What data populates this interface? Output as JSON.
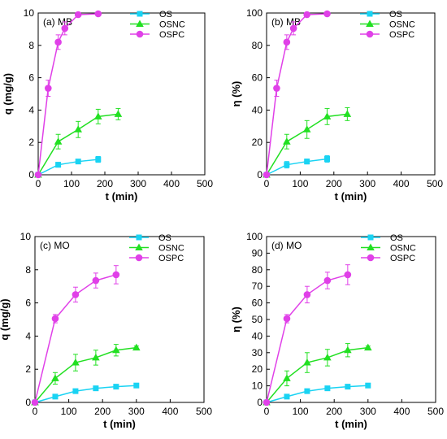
{
  "chart_data": [
    {
      "type": "line",
      "panel_label": "(a) MB",
      "xlabel": "t (min)",
      "ylabel": "q (mg/g)",
      "xlim": [
        0,
        500
      ],
      "ylim": [
        0,
        10
      ],
      "xticks": [
        0,
        100,
        200,
        300,
        400,
        500
      ],
      "yticks": [
        0,
        2,
        4,
        6,
        8,
        10
      ],
      "legend_position": "top-right",
      "series": [
        {
          "name": "OS",
          "color": "#19d3f3",
          "marker": "square",
          "x": [
            0,
            60,
            120,
            180
          ],
          "y": [
            0,
            0.62,
            0.82,
            0.95
          ],
          "err": [
            0,
            0.15,
            0.12,
            0.18
          ]
        },
        {
          "name": "OSNC",
          "color": "#22e022",
          "marker": "triangle",
          "x": [
            0,
            60,
            120,
            180,
            240
          ],
          "y": [
            0,
            2.05,
            2.8,
            3.6,
            3.75
          ],
          "err": [
            0,
            0.45,
            0.5,
            0.45,
            0.35
          ]
        },
        {
          "name": "OSPC",
          "color": "#e040e8",
          "marker": "circle",
          "x": [
            0,
            30,
            60,
            80,
            120,
            180
          ],
          "y": [
            0,
            5.35,
            8.2,
            9.05,
            9.9,
            9.95
          ],
          "err": [
            0,
            0.5,
            0.45,
            0.4,
            0.1,
            0.1
          ]
        }
      ]
    },
    {
      "type": "line",
      "panel_label": "(b) MB",
      "xlabel": "t (min)",
      "ylabel": "η (%)",
      "xlim": [
        0,
        500
      ],
      "ylim": [
        0,
        100
      ],
      "xticks": [
        0,
        100,
        200,
        300,
        400,
        500
      ],
      "yticks": [
        0,
        20,
        40,
        60,
        80,
        100
      ],
      "legend_position": "top-right",
      "series": [
        {
          "name": "OS",
          "color": "#19d3f3",
          "marker": "square",
          "x": [
            0,
            60,
            120,
            180
          ],
          "y": [
            0,
            6.2,
            8.2,
            9.8
          ],
          "err": [
            0,
            2,
            1.5,
            2
          ]
        },
        {
          "name": "OSNC",
          "color": "#22e022",
          "marker": "triangle",
          "x": [
            0,
            60,
            120,
            180,
            240
          ],
          "y": [
            0,
            20.5,
            28,
            36,
            37.5
          ],
          "err": [
            0,
            4.5,
            5.5,
            5,
            4
          ]
        },
        {
          "name": "OSPC",
          "color": "#e040e8",
          "marker": "circle",
          "x": [
            0,
            30,
            60,
            80,
            120,
            180
          ],
          "y": [
            0,
            53.5,
            82,
            90.5,
            99,
            99.5
          ],
          "err": [
            0,
            5,
            4.5,
            4,
            1,
            1
          ]
        }
      ]
    },
    {
      "type": "line",
      "panel_label": "(c) MO",
      "xlabel": "t (min)",
      "ylabel": "q (mg/g)",
      "xlim": [
        0,
        500
      ],
      "ylim": [
        0,
        10
      ],
      "xticks": [
        0,
        100,
        200,
        300,
        400,
        500
      ],
      "yticks": [
        0,
        2,
        4,
        6,
        8,
        10
      ],
      "legend_position": "top-right",
      "series": [
        {
          "name": "OS",
          "color": "#19d3f3",
          "marker": "square",
          "x": [
            0,
            60,
            120,
            180,
            240,
            300
          ],
          "y": [
            0,
            0.35,
            0.68,
            0.85,
            0.95,
            1.02
          ],
          "err": [
            0,
            0.05,
            0.05,
            0.05,
            0.05,
            0.05
          ]
        },
        {
          "name": "OSNC",
          "color": "#22e022",
          "marker": "triangle",
          "x": [
            0,
            60,
            120,
            180,
            240,
            300
          ],
          "y": [
            0,
            1.45,
            2.4,
            2.7,
            3.15,
            3.3
          ],
          "err": [
            0,
            0.35,
            0.5,
            0.45,
            0.35,
            0.1
          ]
        },
        {
          "name": "OSPC",
          "color": "#e040e8",
          "marker": "circle",
          "x": [
            0,
            60,
            120,
            180,
            240
          ],
          "y": [
            0,
            5.05,
            6.5,
            7.35,
            7.7
          ],
          "err": [
            0,
            0.25,
            0.45,
            0.45,
            0.55
          ]
        }
      ]
    },
    {
      "type": "line",
      "panel_label": "(d) MO",
      "xlabel": "t (min)",
      "ylabel": "η (%)",
      "xlim": [
        0,
        500
      ],
      "ylim": [
        0,
        100
      ],
      "xticks": [
        0,
        100,
        200,
        300,
        400,
        500
      ],
      "yticks": [
        0,
        10,
        20,
        30,
        40,
        50,
        60,
        70,
        80,
        90,
        100
      ],
      "legend_position": "top-right",
      "series": [
        {
          "name": "OS",
          "color": "#19d3f3",
          "marker": "square",
          "x": [
            0,
            60,
            120,
            180,
            240,
            300
          ],
          "y": [
            0,
            3.5,
            6.8,
            8.5,
            9.5,
            10.2
          ],
          "err": [
            0,
            0.5,
            0.5,
            0.5,
            0.5,
            0.5
          ]
        },
        {
          "name": "OSNC",
          "color": "#22e022",
          "marker": "triangle",
          "x": [
            0,
            60,
            120,
            180,
            240,
            300
          ],
          "y": [
            0,
            14.5,
            24,
            27,
            31.5,
            33
          ],
          "err": [
            0,
            4.5,
            6,
            5,
            4,
            1
          ]
        },
        {
          "name": "OSPC",
          "color": "#e040e8",
          "marker": "circle",
          "x": [
            0,
            60,
            120,
            180,
            240
          ],
          "y": [
            0,
            50.5,
            65,
            73.5,
            77
          ],
          "err": [
            0,
            2.5,
            5,
            5,
            6
          ]
        }
      ]
    }
  ]
}
